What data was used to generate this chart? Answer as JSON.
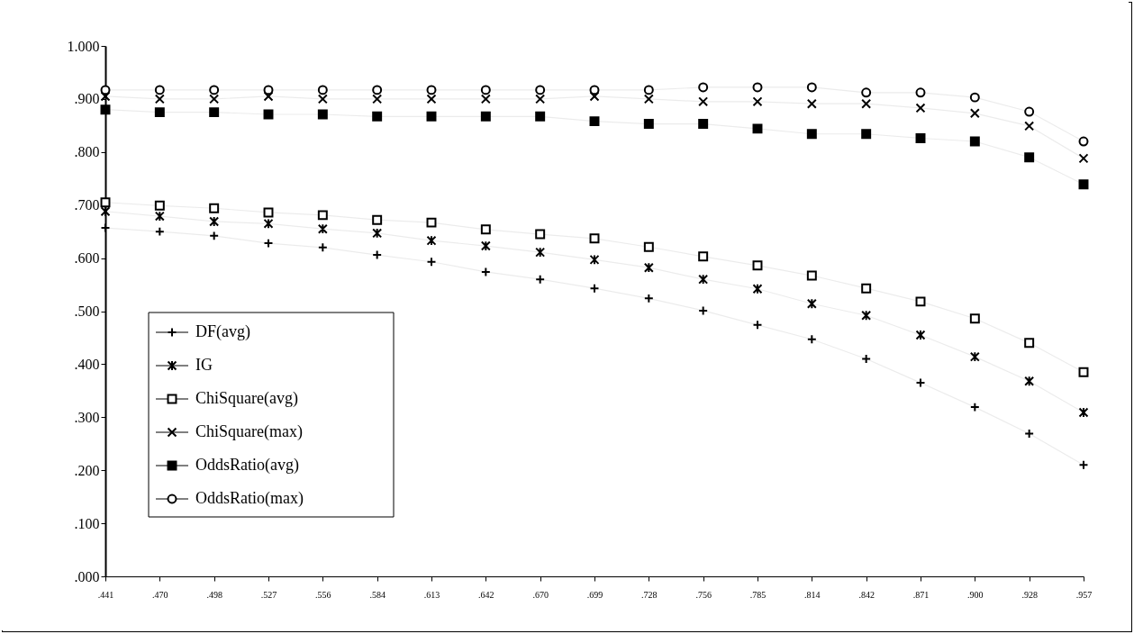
{
  "chart_data": {
    "type": "line",
    "categories": [
      ".441",
      ".470",
      ".498",
      ".527",
      ".556",
      ".584",
      ".613",
      ".642",
      ".670",
      ".699",
      ".728",
      ".756",
      ".785",
      ".814",
      ".842",
      ".871",
      ".900",
      ".928",
      ".957"
    ],
    "ylim": [
      0,
      1
    ],
    "yticks": [
      {
        "value": 0,
        "label": ".000"
      },
      {
        "value": 0.1,
        "label": ".100"
      },
      {
        "value": 0.2,
        "label": ".200"
      },
      {
        "value": 0.3,
        "label": ".300"
      },
      {
        "value": 0.4,
        "label": ".400"
      },
      {
        "value": 0.5,
        "label": ".500"
      },
      {
        "value": 0.6,
        "label": ".600"
      },
      {
        "value": 0.7,
        "label": ".700"
      },
      {
        "value": 0.8,
        "label": ".800"
      },
      {
        "value": 0.9,
        "label": ".900"
      },
      {
        "value": 1,
        "label": "1.000"
      }
    ],
    "legend": "bottom left",
    "series": [
      {
        "name": "DF(avg)",
        "color": "#000000",
        "marker": "cross",
        "values": [
          0.657,
          0.65,
          0.642,
          0.628,
          0.62,
          0.606,
          0.593,
          0.574,
          0.56,
          0.543,
          0.524,
          0.501,
          0.474,
          0.447,
          0.41,
          0.365,
          0.319,
          0.269,
          0.21
        ]
      },
      {
        "name": "IG",
        "color": "#000000",
        "marker": "cross",
        "values": [
          0.688,
          0.679,
          0.669,
          0.665,
          0.655,
          0.647,
          0.633,
          0.623,
          0.611,
          0.597,
          0.582,
          0.56,
          0.542,
          0.514,
          0.492,
          0.455,
          0.414,
          0.368,
          0.309
        ]
      },
      {
        "name": "ChiSquare(avg)",
        "color": "#000000",
        "marker": "square",
        "values": [
          0.705,
          0.699,
          0.694,
          0.686,
          0.681,
          0.672,
          0.667,
          0.654,
          0.645,
          0.637,
          0.621,
          0.603,
          0.586,
          0.567,
          0.543,
          0.518,
          0.486,
          0.44,
          0.385
        ]
      },
      {
        "name": "ChiSquare(max)",
        "color": "#000000",
        "marker": "cross",
        "values": [
          0.905,
          0.9,
          0.9,
          0.905,
          0.9,
          0.9,
          0.9,
          0.9,
          0.9,
          0.905,
          0.9,
          0.895,
          0.895,
          0.891,
          0.891,
          0.883,
          0.873,
          0.849,
          0.788
        ]
      },
      {
        "name": "OddsRatio(avg)",
        "color": "#000000",
        "marker": "square",
        "values": [
          0.88,
          0.875,
          0.875,
          0.871,
          0.871,
          0.867,
          0.867,
          0.867,
          0.867,
          0.858,
          0.853,
          0.853,
          0.844,
          0.834,
          0.834,
          0.826,
          0.82,
          0.79,
          0.739
        ]
      },
      {
        "name": "OddsRatio(max)",
        "color": "#000000",
        "marker": "circle",
        "values": [
          0.917,
          0.917,
          0.917,
          0.917,
          0.917,
          0.917,
          0.917,
          0.917,
          0.917,
          0.917,
          0.917,
          0.922,
          0.922,
          0.922,
          0.912,
          0.912,
          0.903,
          0.876,
          0.82
        ]
      }
    ]
  }
}
